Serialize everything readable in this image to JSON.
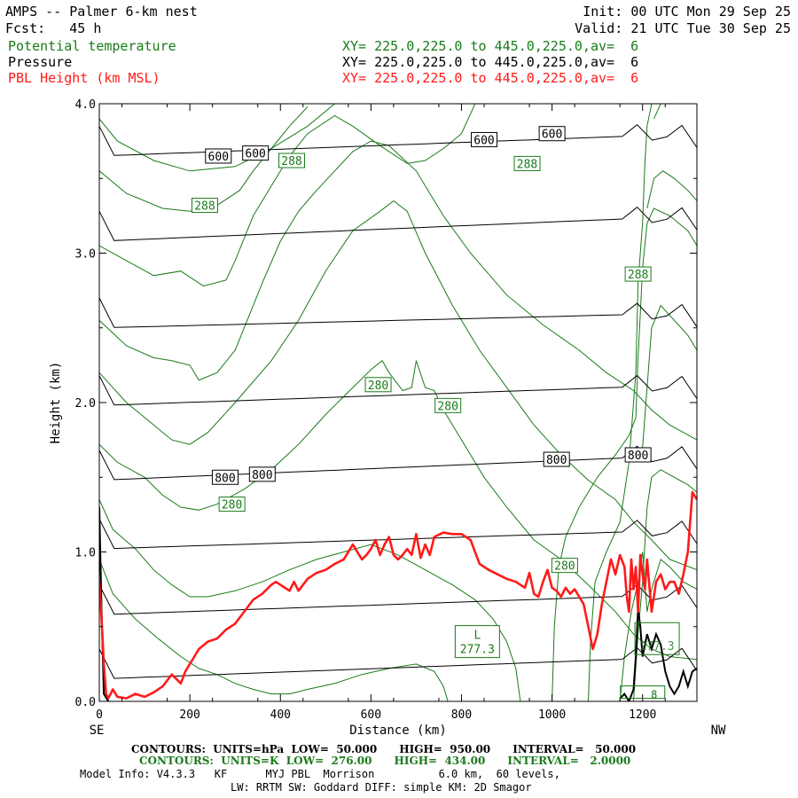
{
  "header": {
    "title": "AMPS -- Palmer 6-km nest",
    "fcst": "Fcst:   45 h",
    "init": "Init: 00 UTC Mon 29 Sep 25",
    "valid": "Valid: 21 UTC Tue 30 Sep 25",
    "fields": [
      {
        "name": "Potential temperature",
        "xy": "XY= 225.0,225.0 to 445.0,225.0,av=  6",
        "color": "#1a7a1a"
      },
      {
        "name": "Pressure",
        "xy": "XY= 225.0,225.0 to 445.0,225.0,av=  6",
        "color": "#000000"
      },
      {
        "name": "PBL Height (km MSL)",
        "xy": "XY= 225.0,225.0 to 445.0,225.0,av=  6",
        "color": "#ff1a1a"
      }
    ]
  },
  "footer": {
    "contours_p": "CONTOURS:  UNITS=hPa  LOW=  50.000      HIGH=  950.00      INTERVAL=   50.000",
    "contours_t": "CONTOURS:  UNITS=K  LOW=  276.00      HIGH=  434.00      INTERVAL=   2.0000",
    "model_info": "Model Info: V4.3.3   KF      MYJ PBL  Morrison          6.0 km,  60 levels,",
    "model_info2": "LW: RRTM SW: Goddard DIFF: simple KM: 2D Smagor"
  },
  "chart_data": {
    "type": "line",
    "title": "Vertical cross-section: potential temperature, pressure and PBL height",
    "xlabel": "Distance (km)",
    "ylabel": "Height (km)",
    "xlim": [
      0,
      1320
    ],
    "ylim": [
      0,
      4.0
    ],
    "x_ticks": [
      0,
      200,
      400,
      600,
      800,
      1000,
      1200
    ],
    "x_tick_labels": [
      "0",
      "200",
      "400",
      "600",
      "800",
      "1000",
      "1200"
    ],
    "y_ticks": [
      0,
      1,
      2,
      3,
      4
    ],
    "y_tick_labels": [
      "0.0",
      "1.0",
      "2.0",
      "3.0",
      "4.0"
    ],
    "left_end_label": "SE",
    "right_end_label": "NW",
    "pbl_height": {
      "name": "PBL Height (km MSL)",
      "color": "#ff1a1a",
      "x": [
        0,
        5,
        10,
        15,
        20,
        30,
        40,
        60,
        80,
        100,
        120,
        140,
        160,
        170,
        180,
        190,
        200,
        210,
        220,
        240,
        260,
        280,
        300,
        320,
        340,
        360,
        380,
        390,
        400,
        410,
        420,
        430,
        440,
        460,
        480,
        500,
        520,
        540,
        560,
        570,
        580,
        590,
        600,
        610,
        620,
        630,
        640,
        650,
        660,
        670,
        680,
        690,
        700,
        710,
        720,
        730,
        740,
        760,
        780,
        800,
        820,
        840,
        860,
        880,
        900,
        920,
        940,
        950,
        960,
        970,
        980,
        990,
        1000,
        1010,
        1020,
        1030,
        1040,
        1050,
        1060,
        1070,
        1080,
        1090,
        1100,
        1110,
        1120,
        1130,
        1140,
        1150,
        1160,
        1165,
        1170,
        1175,
        1180,
        1185,
        1190,
        1195,
        1200,
        1205,
        1210,
        1220,
        1230,
        1240,
        1250,
        1260,
        1270,
        1280,
        1290,
        1300,
        1310,
        1320
      ],
      "y": [
        0.8,
        0.55,
        0.25,
        0.05,
        0.02,
        0.08,
        0.03,
        0.02,
        0.05,
        0.03,
        0.06,
        0.1,
        0.18,
        0.15,
        0.12,
        0.2,
        0.25,
        0.3,
        0.35,
        0.4,
        0.42,
        0.48,
        0.52,
        0.6,
        0.68,
        0.72,
        0.78,
        0.8,
        0.78,
        0.76,
        0.74,
        0.8,
        0.74,
        0.82,
        0.86,
        0.88,
        0.92,
        0.95,
        1.05,
        1.0,
        0.95,
        0.98,
        1.02,
        1.08,
        0.98,
        1.05,
        1.1,
        0.98,
        0.95,
        0.98,
        1.02,
        0.98,
        1.12,
        0.96,
        1.05,
        0.98,
        1.1,
        1.13,
        1.12,
        1.12,
        1.08,
        0.92,
        0.88,
        0.85,
        0.82,
        0.8,
        0.76,
        0.86,
        0.72,
        0.7,
        0.8,
        0.88,
        0.76,
        0.74,
        0.7,
        0.76,
        0.72,
        0.75,
        0.7,
        0.65,
        0.5,
        0.35,
        0.45,
        0.65,
        0.8,
        0.95,
        0.85,
        0.98,
        0.9,
        0.7,
        0.6,
        0.95,
        0.75,
        0.9,
        0.6,
        0.98,
        0.85,
        0.75,
        0.95,
        0.6,
        0.8,
        0.85,
        0.75,
        0.8,
        0.8,
        0.72,
        0.85,
        1.0,
        1.4,
        1.35
      ],
      "line_width_note": "bold"
    },
    "isobars": {
      "name": "Pressure",
      "units": "hPa",
      "color": "#000000",
      "levels": [
        {
          "hPa": 600,
          "y_left": 3.65,
          "y_right": 3.8
        },
        {
          "hPa": 650,
          "y_left": 3.08,
          "y_right": 3.25
        },
        {
          "hPa": 700,
          "y_left": 2.5,
          "y_right": 2.6
        },
        {
          "hPa": 750,
          "y_left": 1.98,
          "y_right": 2.12
        },
        {
          "hPa": 800,
          "y_left": 1.48,
          "y_right": 1.65
        },
        {
          "hPa": 850,
          "y_left": 1.02,
          "y_right": 1.15
        },
        {
          "hPa": 900,
          "y_left": 0.58,
          "y_right": 0.72
        },
        {
          "hPa": 950,
          "y_left": 0.15,
          "y_right": 0.3
        }
      ],
      "labels": [
        {
          "text": "600",
          "x": 263,
          "y": 3.65
        },
        {
          "text": "600",
          "x": 345,
          "y": 3.67
        },
        {
          "text": "600",
          "x": 850,
          "y": 3.76
        },
        {
          "text": "600",
          "x": 1000,
          "y": 3.8
        },
        {
          "text": "800",
          "x": 278,
          "y": 1.5
        },
        {
          "text": "800",
          "x": 360,
          "y": 1.52
        },
        {
          "text": "800",
          "x": 1010,
          "y": 1.62
        },
        {
          "text": "800",
          "x": 1190,
          "y": 1.65
        }
      ],
      "surface_profile": {
        "x": [
          1150,
          1160,
          1170,
          1180,
          1185,
          1190,
          1195,
          1200,
          1210,
          1220,
          1230,
          1240,
          1250,
          1260,
          1270,
          1280,
          1290,
          1300,
          1310,
          1320
        ],
        "y": [
          0.02,
          0.05,
          0.0,
          0.08,
          0.3,
          0.62,
          0.5,
          0.3,
          0.45,
          0.35,
          0.45,
          0.38,
          0.2,
          0.1,
          0.05,
          0.1,
          0.2,
          0.1,
          0.2,
          0.22
        ]
      }
    },
    "isentropes": {
      "name": "Potential temperature",
      "units": "K",
      "color": "#1a7a1a",
      "labels": [
        {
          "text": "288",
          "x": 425,
          "y": 3.62
        },
        {
          "text": "288",
          "x": 233,
          "y": 3.32
        },
        {
          "text": "288",
          "x": 945,
          "y": 3.6
        },
        {
          "text": "288",
          "x": 1190,
          "y": 2.86
        },
        {
          "text": "280",
          "x": 616,
          "y": 2.12
        },
        {
          "text": "280",
          "x": 770,
          "y": 1.98
        },
        {
          "text": "280",
          "x": 293,
          "y": 1.32
        },
        {
          "text": "280",
          "x": 1028,
          "y": 0.91
        }
      ],
      "low_marker": {
        "text": "L",
        "value": "277.3",
        "x": 835,
        "y": 0.4
      },
      "low_marker2": {
        "value": "277.3",
        "x": 1232,
        "y": 0.42
      },
      "low_marker3": {
        "value": "8",
        "x": 1200,
        "y": 0.02
      }
    }
  }
}
